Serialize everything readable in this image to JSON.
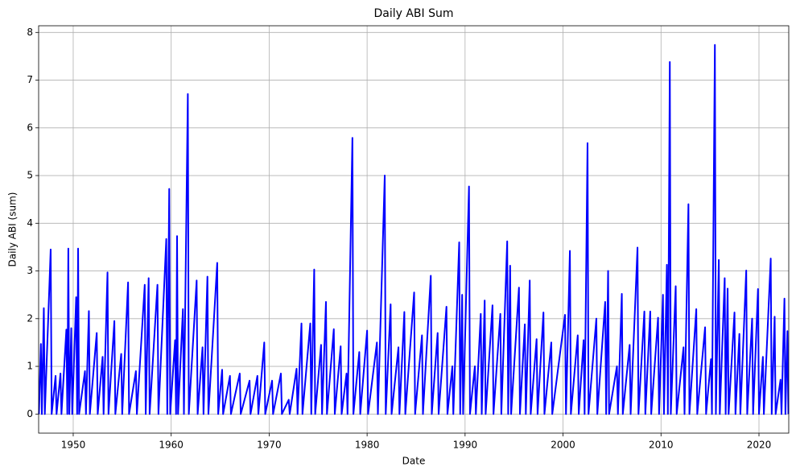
{
  "chart_data": {
    "type": "line",
    "title": "Daily ABI Sum",
    "x_label": "Date",
    "y_label": "Daily ABI (sum)",
    "x": [
      1946.5,
      1946.7,
      1946.8,
      1947.0,
      1947.1,
      1947.7,
      1947.8,
      1948.2,
      1948.3,
      1948.7,
      1948.8,
      1949.3,
      1949.4,
      1949.5,
      1949.6,
      1949.8,
      1949.9,
      1950.3,
      1950.4,
      1950.5,
      1950.6,
      1951.2,
      1951.3,
      1951.6,
      1951.7,
      1952.4,
      1952.5,
      1953.0,
      1953.1,
      1953.5,
      1953.6,
      1954.2,
      1954.3,
      1954.9,
      1955.0,
      1955.6,
      1955.7,
      1956.4,
      1956.5,
      1957.3,
      1957.4,
      1957.7,
      1957.8,
      1958.6,
      1958.7,
      1959.5,
      1959.6,
      1959.8,
      1959.9,
      1960.4,
      1960.5,
      1960.6,
      1960.7,
      1961.2,
      1961.3,
      1961.7,
      1961.8,
      1962.6,
      1962.7,
      1963.2,
      1963.3,
      1963.7,
      1963.8,
      1964.7,
      1964.8,
      1965.2,
      1965.3,
      1966.0,
      1966.1,
      1967.0,
      1967.1,
      1968.0,
      1968.1,
      1968.8,
      1968.9,
      1969.5,
      1969.6,
      1970.3,
      1970.4,
      1971.2,
      1971.3,
      1972.0,
      1972.1,
      1972.8,
      1972.9,
      1973.3,
      1973.4,
      1974.2,
      1974.3,
      1974.6,
      1974.7,
      1975.3,
      1975.4,
      1975.8,
      1975.9,
      1976.6,
      1976.7,
      1977.3,
      1977.4,
      1977.9,
      1978.0,
      1978.5,
      1978.6,
      1979.2,
      1979.3,
      1980.0,
      1980.1,
      1981.0,
      1981.1,
      1981.8,
      1981.9,
      1982.4,
      1982.5,
      1983.2,
      1983.3,
      1983.8,
      1983.9,
      1984.8,
      1984.9,
      1985.6,
      1985.7,
      1986.5,
      1986.6,
      1987.2,
      1987.3,
      1988.1,
      1988.2,
      1988.7,
      1988.8,
      1989.4,
      1989.5,
      1989.7,
      1989.8,
      1990.4,
      1990.5,
      1991.0,
      1991.1,
      1991.6,
      1991.7,
      1992.0,
      1992.1,
      1992.8,
      1992.9,
      1993.6,
      1993.7,
      1994.3,
      1994.4,
      1994.6,
      1994.7,
      1995.5,
      1995.6,
      1996.1,
      1996.2,
      1996.6,
      1996.7,
      1997.3,
      1997.4,
      1998.0,
      1998.1,
      1998.8,
      1998.9,
      2000.2,
      2000.3,
      2000.7,
      2000.8,
      2001.5,
      2001.6,
      2002.1,
      2002.2,
      2002.5,
      2002.6,
      2003.4,
      2003.5,
      2004.3,
      2004.4,
      2004.6,
      2004.7,
      2005.5,
      2005.6,
      2006.0,
      2006.1,
      2006.8,
      2006.9,
      2007.6,
      2007.7,
      2008.3,
      2008.4,
      2008.9,
      2009.0,
      2009.7,
      2009.8,
      2010.2,
      2010.3,
      2010.6,
      2010.7,
      2010.9,
      2011.0,
      2011.5,
      2011.6,
      2012.3,
      2012.4,
      2012.8,
      2012.9,
      2013.6,
      2013.7,
      2014.5,
      2014.6,
      2015.1,
      2015.2,
      2015.5,
      2015.6,
      2015.9,
      2016.0,
      2016.5,
      2016.6,
      2016.8,
      2016.9,
      2017.5,
      2017.6,
      2018.0,
      2018.1,
      2018.7,
      2018.8,
      2019.3,
      2019.4,
      2019.9,
      2020.0,
      2020.4,
      2020.5,
      2021.2,
      2021.3,
      2021.6,
      2021.7,
      2022.2,
      2022.3,
      2022.6,
      2022.7,
      2022.9,
      2023.0
    ],
    "series": [
      {
        "name": "Daily ABI (sum)",
        "color": "#0000ff",
        "values": [
          0,
          1.47,
          0,
          2.22,
          0,
          3.45,
          0,
          0.8,
          0,
          0.85,
          0,
          1.77,
          0,
          3.47,
          0,
          1.8,
          0,
          2.45,
          0,
          3.47,
          0,
          0.9,
          0,
          2.16,
          0,
          1.7,
          0,
          1.2,
          0,
          2.97,
          0,
          1.95,
          0,
          1.26,
          0,
          2.76,
          0,
          0.9,
          0,
          2.71,
          0,
          2.85,
          0,
          2.71,
          0,
          3.67,
          0,
          4.72,
          0,
          1.55,
          0,
          3.73,
          0,
          2.2,
          0,
          6.71,
          0,
          2.8,
          0,
          1.4,
          0,
          2.88,
          0,
          3.17,
          0,
          0.93,
          0,
          0.8,
          0,
          0.85,
          0,
          0.7,
          0,
          0.8,
          0,
          1.5,
          0,
          0.7,
          0,
          0.85,
          0,
          0.3,
          0,
          0.95,
          0,
          1.9,
          0,
          1.9,
          0,
          3.03,
          0,
          1.45,
          0,
          2.35,
          0,
          1.78,
          0,
          1.42,
          0,
          0.85,
          0,
          5.79,
          0,
          1.3,
          0,
          1.75,
          0,
          1.5,
          0,
          5.0,
          0,
          2.3,
          0,
          1.4,
          0,
          2.14,
          0,
          2.55,
          0,
          1.65,
          0,
          2.9,
          0,
          1.7,
          0,
          2.25,
          0,
          1.0,
          0,
          3.6,
          0,
          2.5,
          0,
          4.77,
          0,
          1.0,
          0,
          2.1,
          0,
          2.38,
          0,
          2.28,
          0,
          2.1,
          0,
          3.62,
          0,
          3.11,
          0,
          2.65,
          0,
          1.88,
          0,
          2.8,
          0,
          1.57,
          0,
          2.13,
          0,
          1.5,
          0,
          2.08,
          0,
          3.42,
          0,
          1.65,
          0,
          1.55,
          0,
          5.68,
          0,
          2.0,
          0,
          2.35,
          0,
          3.0,
          0,
          1.0,
          0,
          2.52,
          0,
          1.45,
          0,
          3.49,
          0,
          2.15,
          0,
          2.15,
          0,
          2.02,
          0,
          2.5,
          0,
          3.13,
          0,
          7.38,
          0,
          2.68,
          0,
          1.4,
          0,
          4.4,
          0,
          2.2,
          0,
          1.82,
          0,
          1.15,
          0,
          7.74,
          0,
          3.23,
          0,
          2.85,
          0,
          2.63,
          0,
          2.13,
          0,
          1.68,
          0,
          3.01,
          0,
          2.0,
          0,
          2.62,
          0,
          1.2,
          0,
          3.26,
          0,
          2.04,
          0,
          0.72,
          0,
          2.42,
          0,
          1.74,
          0
        ]
      }
    ],
    "xlim": [
      1946.47,
      2023.04
    ],
    "xticks": [
      1950,
      1960,
      1970,
      1980,
      1990,
      2000,
      2010,
      2020
    ],
    "ylim": [
      -0.4,
      8.14
    ],
    "yticks": [
      0,
      1,
      2,
      3,
      4,
      5,
      6,
      7,
      8
    ],
    "grid": true
  }
}
